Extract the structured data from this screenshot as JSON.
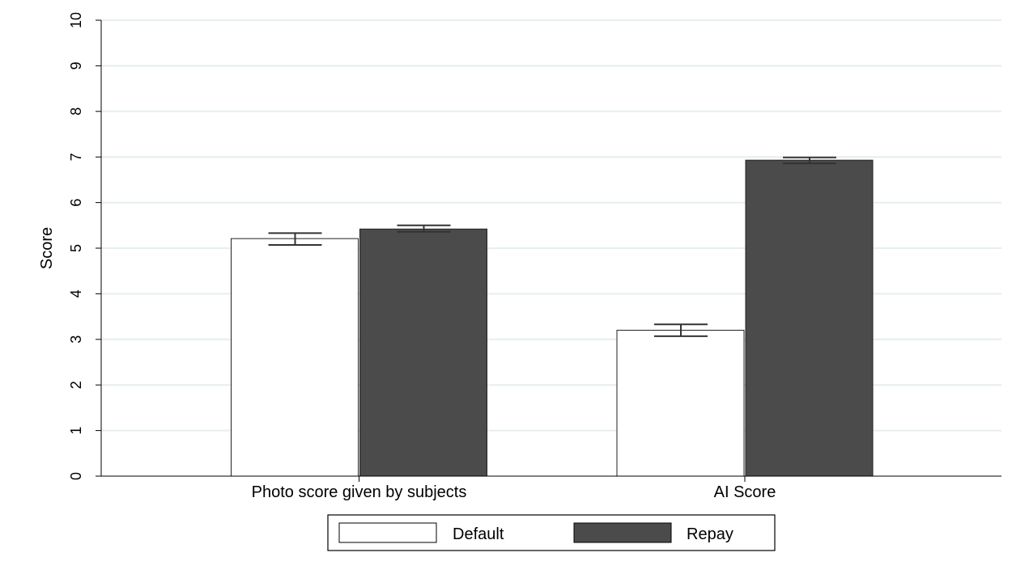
{
  "chart_data": {
    "type": "bar",
    "title": "",
    "xlabel": "",
    "ylabel": "Score",
    "ylim": [
      0,
      10
    ],
    "yticks": [
      "0",
      "1",
      "2",
      "3",
      "4",
      "5",
      "6",
      "7",
      "8",
      "9",
      "10"
    ],
    "grid": true,
    "legend_position": "bottom",
    "categories": [
      "Photo score given by subjects",
      "AI Score"
    ],
    "series": [
      {
        "name": "Default",
        "color": "#ffffff",
        "values": [
          5.21,
          3.2
        ],
        "error_low": [
          5.07,
          3.07
        ],
        "error_high": [
          5.33,
          3.33
        ]
      },
      {
        "name": "Repay",
        "color": "#4b4b4b",
        "values": [
          5.42,
          6.93
        ],
        "error_low": [
          5.36,
          6.86
        ],
        "error_high": [
          5.5,
          6.99
        ]
      }
    ]
  }
}
